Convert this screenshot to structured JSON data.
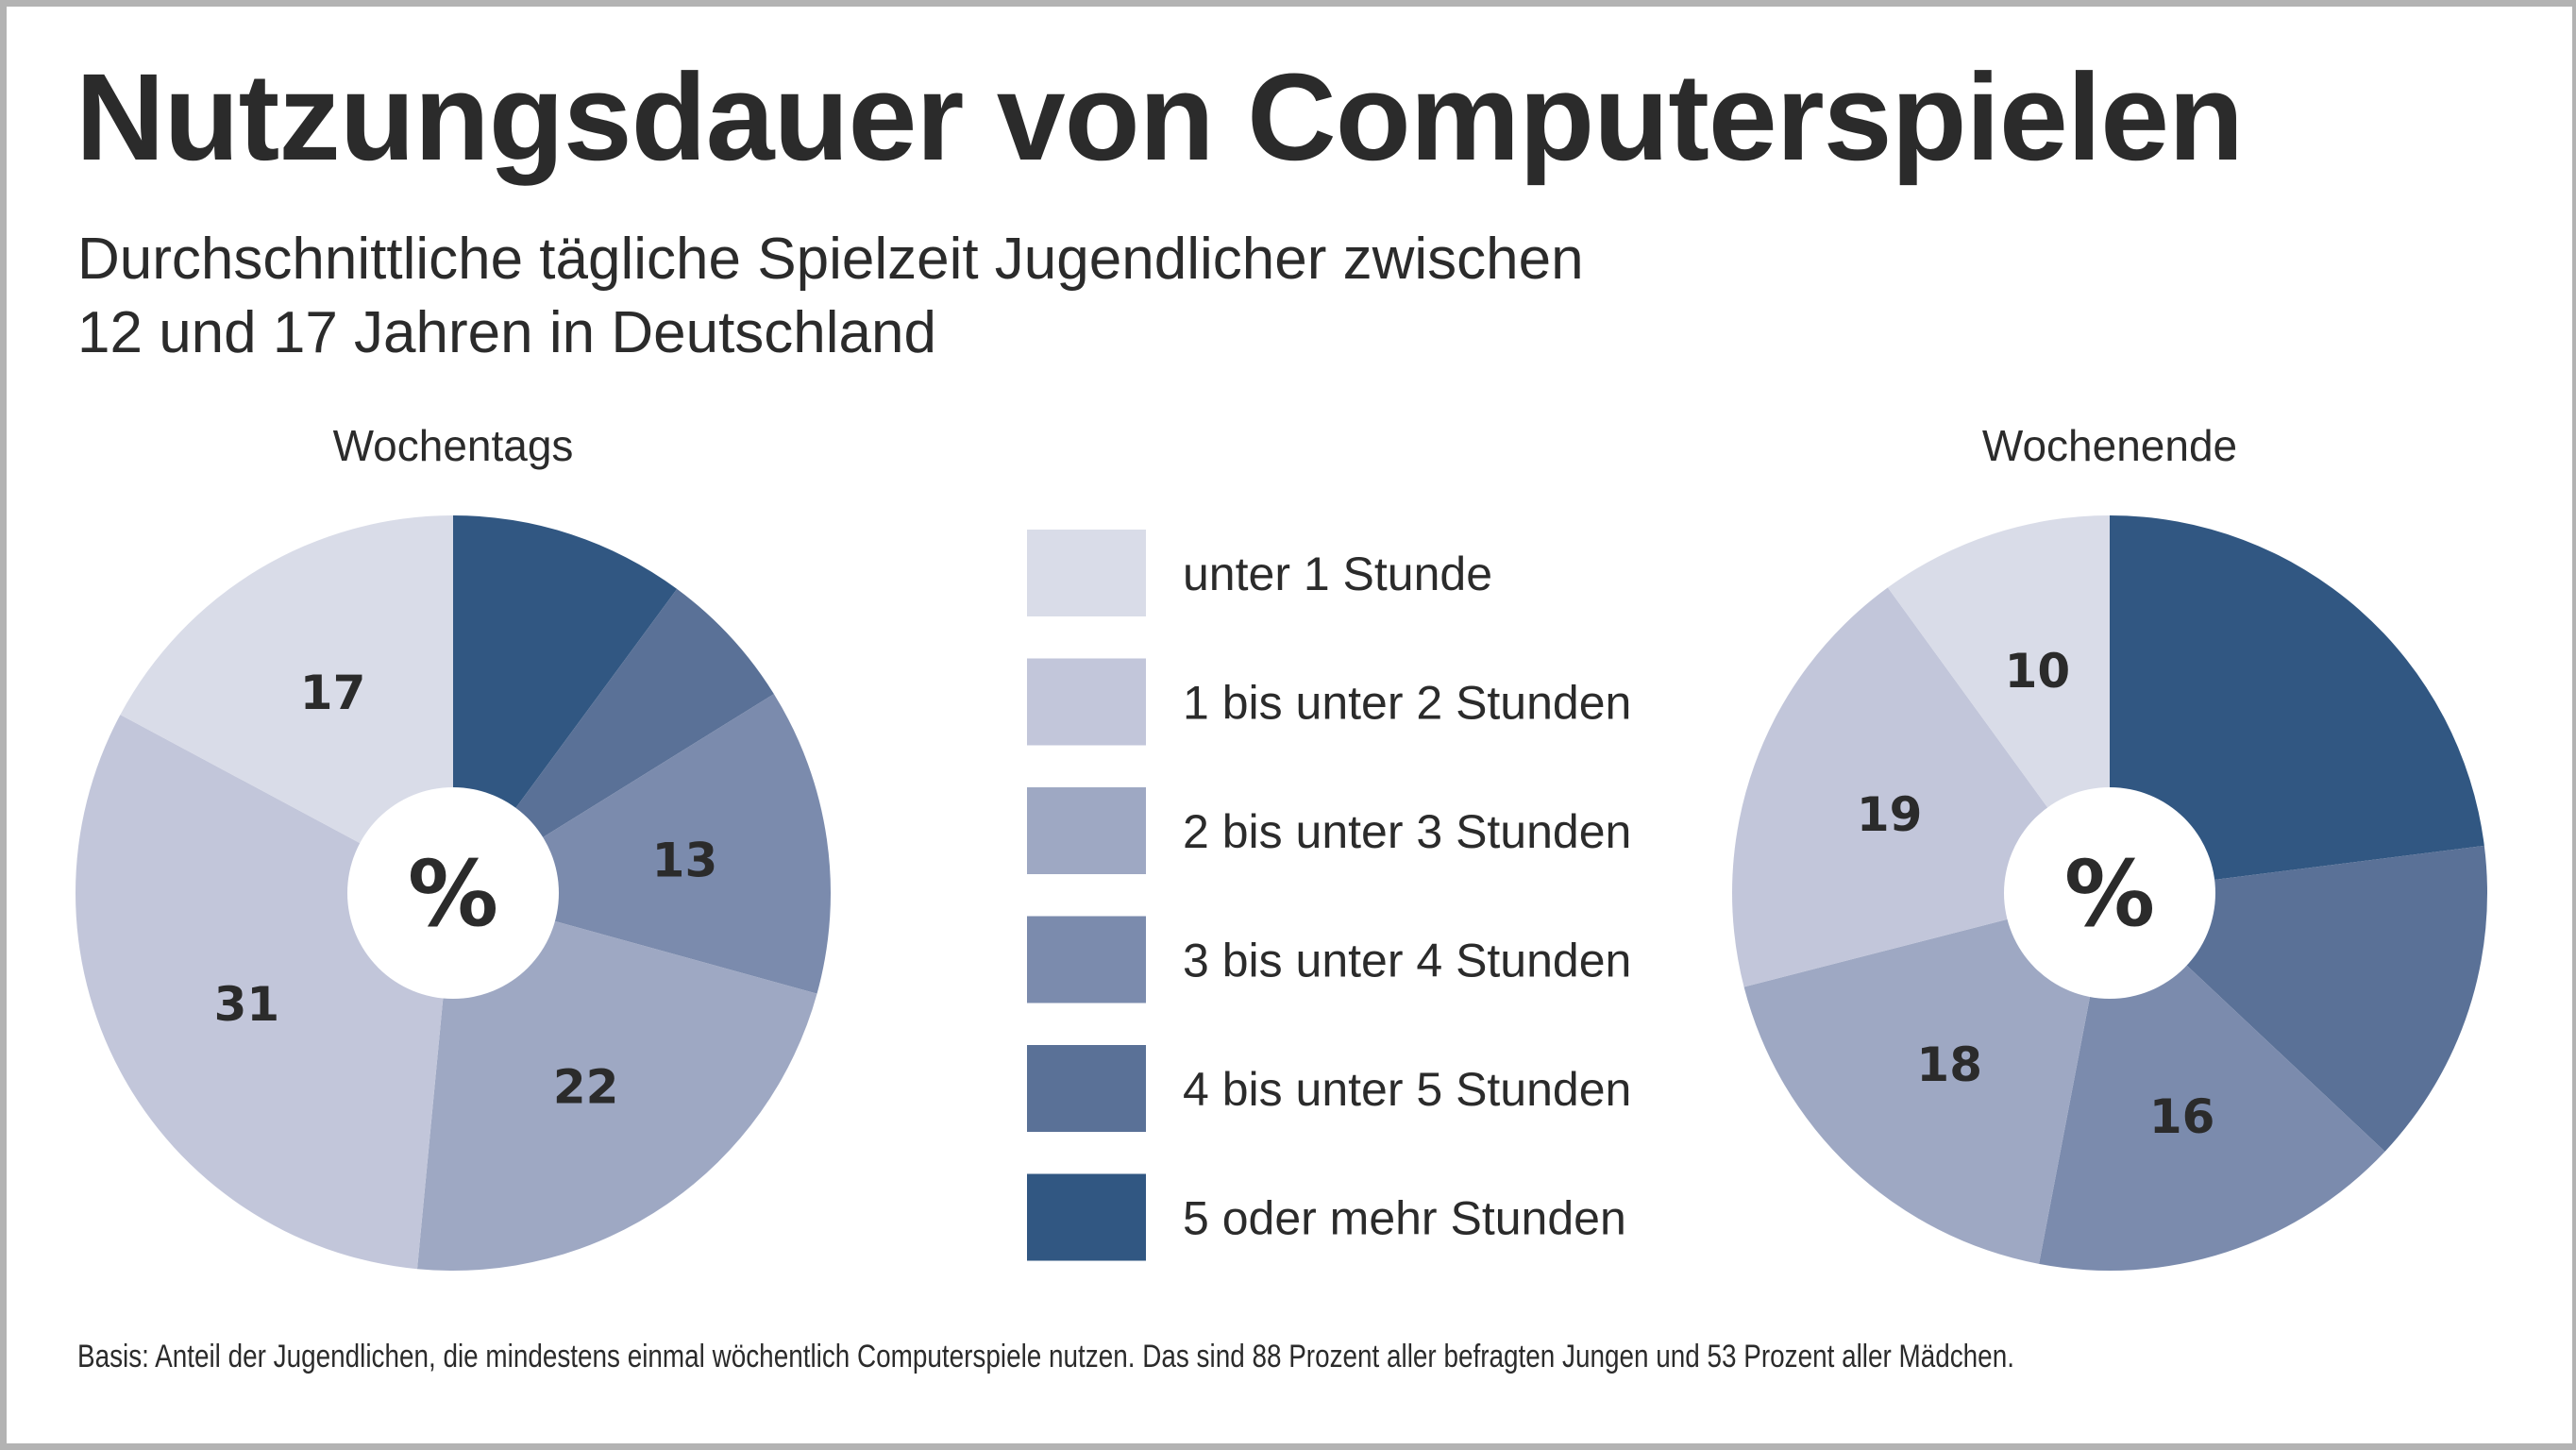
{
  "chart_data": {
    "type": "pie",
    "title": "Nutzungsdauer von Computerspielen",
    "subtitle_lines": [
      "Durchschnittliche tägliche Spielzeit Jugendlicher zwischen",
      "12 und 17 Jahren in Deutschland"
    ],
    "unit": "%",
    "categories": [
      "unter 1 Stunde",
      "1 bis unter 2 Stunden",
      "2 bis unter 3 Stunden",
      "3 bis unter 4 Stunden",
      "4 bis unter 5 Stunden",
      "5 oder mehr Stunden"
    ],
    "colors": [
      "#d9dce8",
      "#c2c6da",
      "#9ea8c3",
      "#7b8bad",
      "#5a7197",
      "#315782"
    ],
    "legend_position": "center",
    "series": [
      {
        "name": "Wochentags",
        "values": [
          17,
          31,
          22,
          13,
          6,
          10
        ],
        "labels": [
          "17",
          "31",
          "22",
          "13",
          "",
          ""
        ]
      },
      {
        "name": "Wochenende",
        "values": [
          10,
          19,
          18,
          16,
          14,
          23
        ],
        "labels": [
          "10",
          "19",
          "18",
          "16",
          "",
          ""
        ]
      }
    ],
    "center_label": "%",
    "footnote": "Basis: Anteil der Jugendlichen, die mindestens einmal wöchentlich Computerspiele nutzen. Das sind 88 Prozent aller befragten Jungen und 53 Prozent aller Mädchen."
  }
}
